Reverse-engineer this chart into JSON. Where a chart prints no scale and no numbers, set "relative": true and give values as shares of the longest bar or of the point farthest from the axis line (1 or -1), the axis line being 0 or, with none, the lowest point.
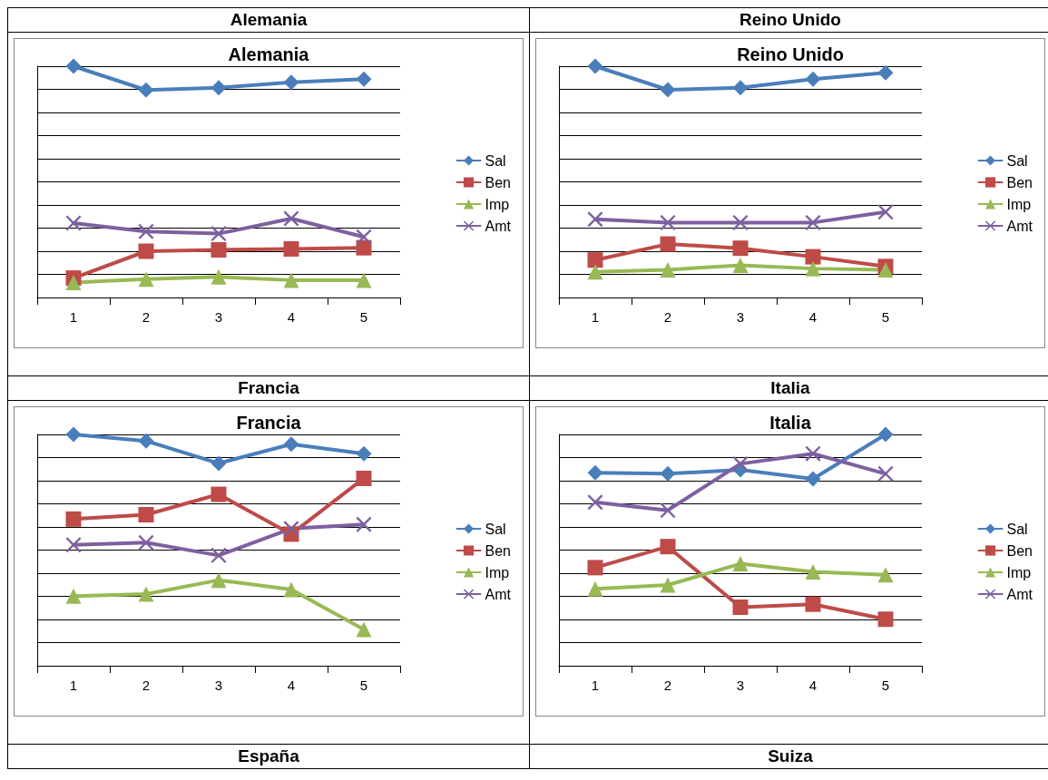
{
  "chart_data": [
    {
      "type": "line",
      "title": "Alemania",
      "annotations": [
        "Alemania"
      ],
      "relative": true,
      "grid": "y",
      "legend": "right",
      "categories": [
        "1",
        "2",
        "3",
        "4",
        "5"
      ],
      "series": [
        {
          "name": "Sal",
          "color": "#4a7ebb",
          "marker": "diamond",
          "values": [
            1,
            0.897,
            0.907,
            0.93,
            0.944
          ]
        },
        {
          "name": "Ben",
          "color": "#be4b48",
          "marker": "square",
          "values": [
            0.084,
            0.2,
            0.206,
            0.21,
            0.215
          ]
        },
        {
          "name": "Imp",
          "color": "#98b954",
          "marker": "triangle",
          "values": [
            0.065,
            0.079,
            0.089,
            0.075,
            0.075
          ]
        },
        {
          "name": "Amt",
          "color": "#7d60a0",
          "marker": "cross",
          "values": [
            0.322,
            0.285,
            0.276,
            0.341,
            0.262
          ]
        }
      ]
    },
    {
      "type": "line",
      "title": "Reino Unido",
      "annotations": [
        "Reino Unido"
      ],
      "relative": true,
      "grid": "y",
      "legend": "right",
      "categories": [
        "1",
        "2",
        "3",
        "4",
        "5"
      ],
      "series": [
        {
          "name": "Sal",
          "color": "#4a7ebb",
          "marker": "diamond",
          "values": [
            1,
            0.898,
            0.907,
            0.944,
            0.972
          ]
        },
        {
          "name": "Ben",
          "color": "#be4b48",
          "marker": "square",
          "values": [
            0.162,
            0.231,
            0.213,
            0.176,
            0.134
          ]
        },
        {
          "name": "Imp",
          "color": "#98b954",
          "marker": "triangle",
          "values": [
            0.111,
            0.12,
            0.139,
            0.125,
            0.12
          ]
        },
        {
          "name": "Amt",
          "color": "#7d60a0",
          "marker": "cross",
          "values": [
            0.338,
            0.324,
            0.324,
            0.324,
            0.37
          ]
        }
      ]
    },
    {
      "type": "line",
      "title": "Francia",
      "annotations": [
        "Francia"
      ],
      "relative": true,
      "grid": "y",
      "legend": "right",
      "categories": [
        "1",
        "2",
        "3",
        "4",
        "5"
      ],
      "series": [
        {
          "name": "Sal",
          "color": "#4a7ebb",
          "marker": "diamond",
          "values": [
            1,
            0.972,
            0.875,
            0.958,
            0.917
          ]
        },
        {
          "name": "Ben",
          "color": "#be4b48",
          "marker": "square",
          "values": [
            0.634,
            0.653,
            0.741,
            0.569,
            0.81
          ]
        },
        {
          "name": "Imp",
          "color": "#98b954",
          "marker": "triangle",
          "values": [
            0.301,
            0.31,
            0.37,
            0.329,
            0.157
          ]
        },
        {
          "name": "Amt",
          "color": "#7d60a0",
          "marker": "cross",
          "values": [
            0.523,
            0.532,
            0.477,
            0.593,
            0.611
          ]
        }
      ]
    },
    {
      "type": "line",
      "title": "Italia",
      "annotations": [
        "Italia"
      ],
      "relative": true,
      "grid": "y",
      "legend": "right",
      "categories": [
        "1",
        "2",
        "3",
        "4",
        "5"
      ],
      "series": [
        {
          "name": "Sal",
          "color": "#4a7ebb",
          "marker": "diamond",
          "values": [
            0.834,
            0.83,
            0.847,
            0.808,
            1
          ]
        },
        {
          "name": "Ben",
          "color": "#be4b48",
          "marker": "square",
          "values": [
            0.424,
            0.515,
            0.253,
            0.266,
            0.201
          ]
        },
        {
          "name": "Imp",
          "color": "#98b954",
          "marker": "triangle",
          "values": [
            0.332,
            0.349,
            0.441,
            0.406,
            0.393
          ]
        },
        {
          "name": "Amt",
          "color": "#7d60a0",
          "marker": "cross",
          "values": [
            0.707,
            0.672,
            0.873,
            0.917,
            0.83
          ]
        }
      ]
    },
    {
      "type": "other",
      "title": "España"
    },
    {
      "type": "other",
      "title": "Suiza"
    }
  ]
}
